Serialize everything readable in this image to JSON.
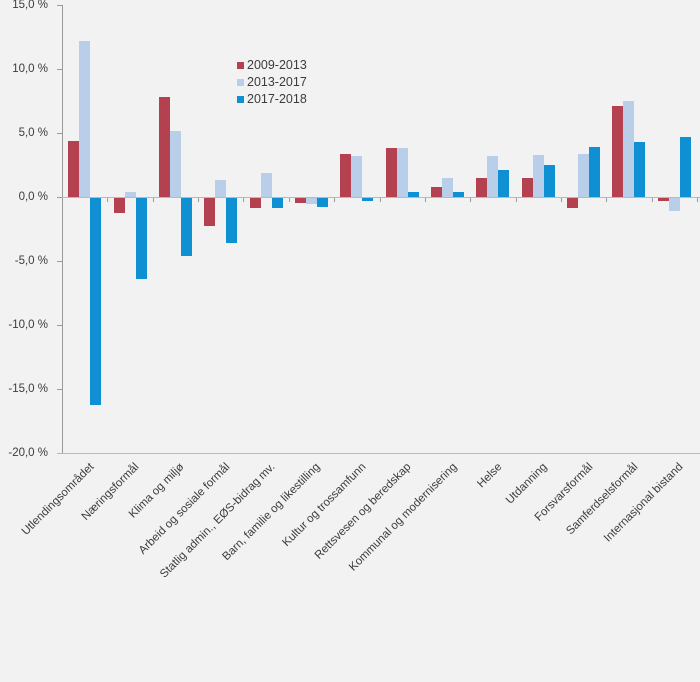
{
  "colors": {
    "background": "#f2f2f2",
    "axis": "#9a9a9a",
    "gridline": "#b9b9b9",
    "text": "#3c3c3c",
    "series_2009_2013": "#b4414f",
    "series_2013_2017": "#b9cfe9",
    "series_2017_2018": "#0f90d2"
  },
  "legend": {
    "items": [
      {
        "label": "2009-2013",
        "color": "#b4414f"
      },
      {
        "label": "2013-2017",
        "color": "#b9cfe9"
      },
      {
        "label": "2017-2018",
        "color": "#0f90d2"
      }
    ]
  },
  "chart_data": {
    "type": "bar",
    "title": "",
    "xlabel": "",
    "ylabel": "",
    "ylim": [
      -20,
      15
    ],
    "grid": "zero-and-bottom-lines-only",
    "legend_position": "inside-top-center",
    "yticks": [
      {
        "value": 15,
        "label": "15,0 %"
      },
      {
        "value": 10,
        "label": "10,0 %"
      },
      {
        "value": 5,
        "label": "5,0 %"
      },
      {
        "value": 0,
        "label": "0,0 %"
      },
      {
        "value": -5,
        "label": "-5,0 %"
      },
      {
        "value": -10,
        "label": "-10,0 %"
      },
      {
        "value": -15,
        "label": "-15,0 %"
      },
      {
        "value": -20,
        "label": "-20,0 %"
      }
    ],
    "categories": [
      "Utlendingsområdet",
      "Næringsformål",
      "Klima og miljø",
      "Arbeid og sosiale formål",
      "Statlig admin., EØS-bidrag mv.",
      "Barn, familie og likestilling",
      "Kultur og trossamfunn",
      "Rettsvesen og beredskap",
      "Kommunal og modernisering",
      "Helse",
      "Utdanning",
      "Forsvarsformål",
      "Samferdselsformål",
      "Internasjonal bistand"
    ],
    "series": [
      {
        "name": "2009-2013",
        "color": "#b4414f",
        "values": [
          4.4,
          -1.2,
          7.8,
          -2.2,
          -0.8,
          -0.4,
          3.4,
          3.8,
          0.8,
          1.5,
          1.5,
          -0.8,
          7.1,
          -0.2
        ]
      },
      {
        "name": "2013-2017",
        "color": "#b9cfe9",
        "values": [
          12.2,
          0.4,
          5.2,
          1.3,
          1.9,
          -0.5,
          3.2,
          3.8,
          1.5,
          3.2,
          3.3,
          3.4,
          7.5,
          -1.0
        ]
      },
      {
        "name": "2017-2018",
        "color": "#0f90d2",
        "values": [
          -16.2,
          -6.3,
          -4.5,
          -3.5,
          -0.8,
          -0.7,
          -0.2,
          0.4,
          0.4,
          2.1,
          2.5,
          3.9,
          4.3,
          4.7
        ]
      }
    ]
  }
}
